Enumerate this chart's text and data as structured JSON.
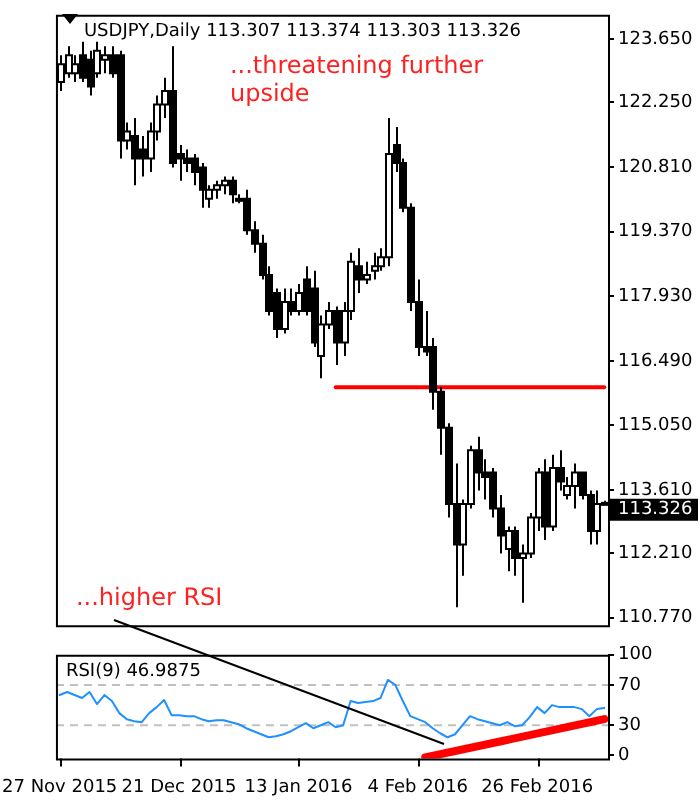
{
  "chart_data": [
    {
      "type": "candlestick",
      "title": "USDJPY,Daily 113.307 113.374 113.303 113.326",
      "ohlc": [
        [
          122.7,
          123.3,
          122.5,
          123.1
        ],
        [
          122.9,
          123.5,
          122.8,
          123.3
        ],
        [
          122.9,
          123.3,
          122.7,
          123.1
        ],
        [
          123.3,
          123.6,
          122.7,
          122.8
        ],
        [
          123.2,
          123.4,
          122.4,
          122.6
        ],
        [
          122.9,
          123.6,
          122.8,
          123.4
        ],
        [
          123.2,
          123.5,
          122.9,
          123.3
        ],
        [
          123.3,
          123.5,
          122.8,
          122.9
        ],
        [
          123.3,
          123.4,
          121.0,
          121.4
        ],
        [
          121.4,
          121.8,
          121.2,
          121.6
        ],
        [
          121.5,
          121.9,
          120.4,
          121.0
        ],
        [
          121.2,
          121.5,
          120.6,
          121.0
        ],
        [
          121.0,
          121.8,
          120.7,
          121.6
        ],
        [
          121.6,
          122.4,
          121.4,
          122.2
        ],
        [
          122.2,
          122.8,
          121.9,
          122.5
        ],
        [
          122.5,
          123.5,
          120.8,
          120.9
        ],
        [
          121.1,
          121.3,
          120.5,
          121.0
        ],
        [
          121.0,
          121.2,
          120.7,
          120.9
        ],
        [
          121.0,
          121.1,
          120.4,
          120.7
        ],
        [
          120.8,
          120.9,
          119.9,
          120.3
        ],
        [
          120.1,
          120.4,
          119.9,
          120.3
        ],
        [
          120.3,
          120.5,
          120.1,
          120.4
        ],
        [
          120.4,
          120.6,
          120.2,
          120.5
        ],
        [
          120.5,
          120.6,
          120.0,
          120.2
        ],
        [
          120.1,
          120.2,
          120.0,
          120.1
        ],
        [
          120.1,
          120.3,
          119.3,
          119.4
        ],
        [
          119.4,
          119.6,
          118.9,
          119.1
        ],
        [
          119.1,
          119.3,
          118.3,
          118.4
        ],
        [
          118.4,
          118.6,
          117.5,
          117.6
        ],
        [
          118.0,
          118.1,
          117.0,
          117.2
        ],
        [
          117.2,
          118.1,
          117.1,
          117.8
        ],
        [
          117.8,
          118.1,
          117.5,
          117.6
        ],
        [
          117.6,
          118.2,
          117.5,
          118.0
        ],
        [
          118.3,
          118.6,
          117.5,
          117.6
        ],
        [
          118.1,
          118.5,
          116.8,
          116.9
        ],
        [
          116.6,
          117.5,
          116.1,
          117.3
        ],
        [
          117.3,
          117.8,
          117.2,
          117.6
        ],
        [
          117.6,
          117.7,
          116.4,
          116.9
        ],
        [
          116.9,
          117.8,
          116.6,
          117.6
        ],
        [
          117.6,
          118.9,
          117.4,
          118.7
        ],
        [
          118.6,
          119.0,
          118.0,
          118.3
        ],
        [
          118.3,
          118.7,
          118.2,
          118.4
        ],
        [
          118.5,
          118.9,
          118.3,
          118.6
        ],
        [
          118.6,
          119.0,
          118.5,
          118.8
        ],
        [
          118.8,
          121.9,
          118.6,
          121.1
        ],
        [
          121.3,
          121.7,
          120.7,
          120.9
        ],
        [
          120.9,
          121.0,
          119.8,
          119.9
        ],
        [
          119.9,
          120.0,
          117.6,
          117.8
        ],
        [
          117.8,
          118.3,
          116.6,
          116.8
        ],
        [
          116.8,
          117.6,
          116.6,
          116.7
        ],
        [
          116.8,
          117.0,
          115.4,
          115.8
        ],
        [
          115.8,
          115.9,
          114.4,
          115.0
        ],
        [
          115.0,
          115.1,
          113.0,
          113.3
        ],
        [
          113.3,
          114.2,
          111.0,
          112.4
        ],
        [
          112.4,
          113.4,
          111.7,
          113.3
        ],
        [
          113.3,
          114.6,
          113.2,
          114.5
        ],
        [
          114.5,
          114.8,
          113.6,
          114.0
        ],
        [
          114.0,
          114.3,
          113.4,
          113.9
        ],
        [
          114.0,
          114.1,
          113.0,
          113.2
        ],
        [
          113.2,
          113.5,
          112.2,
          112.6
        ],
        [
          112.3,
          112.8,
          111.8,
          112.7
        ],
        [
          112.7,
          112.8,
          111.7,
          112.1
        ],
        [
          112.1,
          112.4,
          111.1,
          112.2
        ],
        [
          112.2,
          113.1,
          112.1,
          113.0
        ],
        [
          113.0,
          114.1,
          112.7,
          114.0
        ],
        [
          114.0,
          114.3,
          112.5,
          112.8
        ],
        [
          112.8,
          114.4,
          112.7,
          114.1
        ],
        [
          114.1,
          114.5,
          113.6,
          113.8
        ],
        [
          113.5,
          113.9,
          113.4,
          113.7
        ],
        [
          113.7,
          114.2,
          113.2,
          114.0
        ],
        [
          114.0,
          114.0,
          113.4,
          113.5
        ],
        [
          113.5,
          113.6,
          112.4,
          112.7
        ],
        [
          112.7,
          113.6,
          112.4,
          113.3
        ],
        [
          113.307,
          113.374,
          113.303,
          113.326
        ]
      ],
      "series": [
        {
          "type": "line",
          "color": "#ff0000",
          "values": [
            null,
            null,
            null,
            null,
            null,
            null,
            null,
            null,
            null,
            null,
            null,
            null,
            null,
            null,
            null,
            null,
            null,
            null,
            null,
            null,
            null,
            null,
            null,
            null,
            null,
            null,
            null,
            null,
            null,
            null,
            null,
            null,
            null,
            null,
            null,
            null,
            null,
            115.9,
            115.9,
            115.9,
            115.9,
            115.9,
            115.9,
            115.9,
            115.9,
            115.9,
            115.9,
            115.9,
            115.9,
            115.9,
            115.9,
            115.9,
            115.9,
            115.9,
            115.9,
            115.9,
            115.9,
            115.9,
            115.9,
            115.9,
            115.9,
            115.9,
            115.9,
            115.9,
            115.9,
            115.9,
            115.9,
            115.9,
            115.9,
            115.9,
            115.9,
            115.9,
            115.9,
            115.9
          ]
        }
      ],
      "ylim": [
        110.6,
        124.2
      ],
      "yticks": [
        {
          "value": 110.77,
          "label": "110.770"
        },
        {
          "value": 112.21,
          "label": "112.210"
        },
        {
          "value": 113.61,
          "label": "113.610"
        },
        {
          "value": 115.05,
          "label": "115.050"
        },
        {
          "value": 116.49,
          "label": "116.490"
        },
        {
          "value": 117.93,
          "label": "117.930"
        },
        {
          "value": 119.37,
          "label": "119.370"
        },
        {
          "value": 120.81,
          "label": "120.810"
        },
        {
          "value": 122.25,
          "label": "122.250"
        },
        {
          "value": 123.65,
          "label": "123.650"
        }
      ],
      "tick_labels": "y",
      "annotations": [
        "...threatening further upside",
        "...higher RSI",
        "113.326"
      ]
    },
    {
      "type": "line",
      "title": "RSI(9) 46.9875",
      "categories": [
        "27 Nov 2015",
        null,
        null,
        null,
        null,
        null,
        null,
        null,
        null,
        null,
        null,
        null,
        null,
        null,
        null,
        null,
        "21 Dec 2015",
        null,
        null,
        null,
        null,
        null,
        null,
        null,
        null,
        null,
        null,
        null,
        null,
        null,
        null,
        null,
        "13 Jan 2016",
        null,
        null,
        null,
        null,
        null,
        null,
        null,
        null,
        null,
        null,
        null,
        null,
        null,
        null,
        null,
        "4 Feb 2016",
        null,
        null,
        null,
        null,
        null,
        null,
        null,
        null,
        null,
        null,
        null,
        null,
        null,
        null,
        null,
        "26 Feb 2016",
        null,
        null,
        null,
        null,
        null,
        null,
        null,
        null,
        null
      ],
      "series": [
        {
          "color": "#1e90ff",
          "values": [
            60,
            63,
            60,
            57,
            63,
            51,
            60,
            54,
            42,
            36,
            34,
            33,
            42,
            48,
            55,
            40,
            40,
            39,
            39,
            36,
            34,
            35,
            35,
            33,
            31,
            27,
            24,
            21,
            18,
            19,
            21,
            24,
            28,
            32,
            27,
            30,
            33,
            28,
            30,
            54,
            52,
            53,
            54,
            57,
            75,
            70,
            54,
            39,
            36,
            33,
            27,
            22,
            18,
            21,
            30,
            39,
            36,
            34,
            32,
            30,
            33,
            29,
            30,
            38,
            48,
            42,
            50,
            48,
            48,
            48,
            46,
            39,
            46,
            47
          ]
        },
        {
          "color": "#ff0000",
          "values": [
            null,
            null,
            null,
            null,
            null,
            null,
            null,
            null,
            null,
            null,
            null,
            null,
            null,
            null,
            null,
            null,
            null,
            null,
            null,
            null,
            null,
            null,
            null,
            null,
            null,
            null,
            null,
            null,
            null,
            null,
            null,
            null,
            null,
            null,
            null,
            null,
            null,
            null,
            null,
            null,
            null,
            null,
            null,
            null,
            null,
            null,
            null,
            null,
            null,
            -2,
            null,
            null,
            null,
            null,
            null,
            null,
            null,
            null,
            null,
            null,
            null,
            null,
            null,
            null,
            null,
            null,
            null,
            null,
            null,
            null,
            null,
            null,
            null,
            36
          ]
        }
      ],
      "ylim": [
        -3,
        100
      ],
      "yticks": [
        0,
        30,
        70,
        100
      ],
      "ref_lines": [
        {
          "axis": "y",
          "value": 70,
          "color": "#c0c0c0",
          "line_style": "dashed"
        },
        {
          "axis": "y",
          "value": 30,
          "color": "#c0c0c0",
          "line_style": "dashed"
        }
      ]
    }
  ]
}
